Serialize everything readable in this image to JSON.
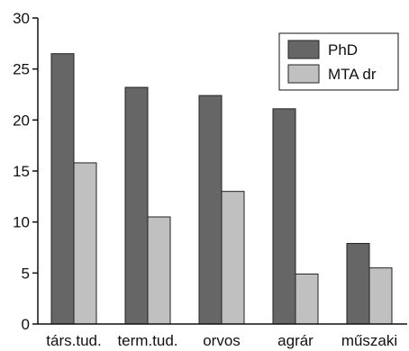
{
  "chart_data": {
    "type": "bar",
    "title": "",
    "xlabel": "",
    "ylabel": "",
    "categories": [
      "társ.tud.",
      "term.tud.",
      "orvos",
      "agrár",
      "műszaki"
    ],
    "series": [
      {
        "name": "PhD",
        "values": [
          26.5,
          23.2,
          22.4,
          21.1,
          7.9
        ],
        "color": "#666666"
      },
      {
        "name": "MTA dr",
        "values": [
          15.8,
          10.5,
          13.0,
          4.9,
          5.5
        ],
        "color": "#c0c0c0"
      }
    ],
    "ylim": [
      0,
      30
    ],
    "yticks": [
      "0",
      "5",
      "10",
      "15",
      "20",
      "25",
      "30"
    ],
    "grid": false,
    "legend_position": "top-right",
    "bar_edge_color": "#222222"
  }
}
